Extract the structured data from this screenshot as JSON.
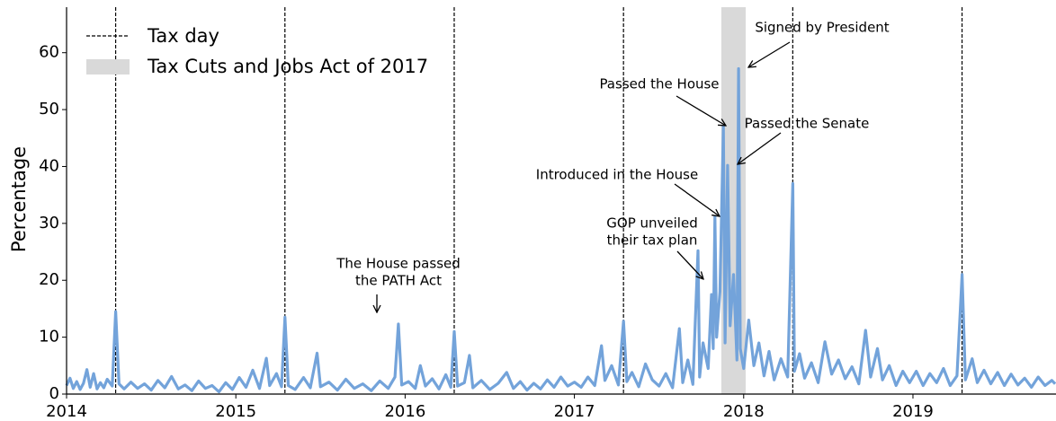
{
  "chart_data": {
    "type": "line",
    "y_label": "Percentage",
    "xlim": [
      2014,
      2019.845
    ],
    "xticks": [
      2014,
      2015,
      2016,
      2017,
      2018,
      2019
    ],
    "ylim": [
      0,
      68
    ],
    "yticks": [
      0,
      10,
      20,
      30,
      40,
      50,
      60
    ],
    "tax_day_label": "Tax day",
    "tax_days": [
      2014.29,
      2015.29,
      2016.29,
      2017.29,
      2018.29,
      2019.29
    ],
    "span_label": "Tax Cuts and Jobs Act of 2017",
    "span": [
      2017.868,
      2018.012
    ],
    "span_color": "#d9d9d9",
    "annotations": [
      [
        "The House passed",
        "the PATH Act"
      ],
      [
        "GOP unveiled",
        "their tax plan"
      ],
      [
        "Introduced in the House"
      ],
      [
        "Passed the House"
      ],
      [
        "Passed the Senate"
      ],
      [
        "Signed by President"
      ]
    ],
    "series": [
      {
        "color": "#73a3da",
        "x": [
          2014.0,
          2014.02,
          2014.04,
          2014.06,
          2014.08,
          2014.1,
          2014.12,
          2014.14,
          2014.16,
          2014.18,
          2014.2,
          2014.22,
          2014.24,
          2014.27,
          2014.29,
          2014.31,
          2014.34,
          2014.38,
          2014.42,
          2014.46,
          2014.5,
          2014.54,
          2014.58,
          2014.62,
          2014.66,
          2014.7,
          2014.74,
          2014.78,
          2014.82,
          2014.86,
          2014.9,
          2014.94,
          2014.98,
          2015.02,
          2015.06,
          2015.1,
          2015.14,
          2015.18,
          2015.2,
          2015.24,
          2015.27,
          2015.29,
          2015.31,
          2015.35,
          2015.4,
          2015.44,
          2015.48,
          2015.5,
          2015.55,
          2015.6,
          2015.65,
          2015.7,
          2015.75,
          2015.8,
          2015.85,
          2015.9,
          2015.94,
          2015.96,
          2015.98,
          2016.02,
          2016.06,
          2016.09,
          2016.12,
          2016.16,
          2016.2,
          2016.24,
          2016.27,
          2016.29,
          2016.31,
          2016.35,
          2016.38,
          2016.4,
          2016.45,
          2016.5,
          2016.55,
          2016.6,
          2016.64,
          2016.68,
          2016.72,
          2016.76,
          2016.8,
          2016.84,
          2016.88,
          2016.92,
          2016.96,
          2017.0,
          2017.04,
          2017.08,
          2017.12,
          2017.16,
          2017.18,
          2017.22,
          2017.26,
          2017.29,
          2017.31,
          2017.34,
          2017.38,
          2017.42,
          2017.46,
          2017.5,
          2017.54,
          2017.58,
          2017.62,
          2017.64,
          2017.67,
          2017.7,
          2017.73,
          2017.74,
          2017.76,
          2017.79,
          2017.81,
          2017.82,
          2017.83,
          2017.84,
          2017.86,
          2017.88,
          2017.89,
          2017.905,
          2017.92,
          2017.94,
          2017.96,
          2017.97,
          2017.98,
          2018.0,
          2018.03,
          2018.06,
          2018.09,
          2018.12,
          2018.15,
          2018.18,
          2018.22,
          2018.26,
          2018.29,
          2018.3,
          2018.33,
          2018.36,
          2018.4,
          2018.44,
          2018.48,
          2018.52,
          2018.56,
          2018.6,
          2018.64,
          2018.68,
          2018.72,
          2018.75,
          2018.79,
          2018.82,
          2018.86,
          2018.9,
          2018.94,
          2018.98,
          2019.02,
          2019.06,
          2019.1,
          2019.14,
          2019.18,
          2019.22,
          2019.26,
          2019.29,
          2019.31,
          2019.35,
          2019.38,
          2019.42,
          2019.46,
          2019.5,
          2019.54,
          2019.58,
          2019.62,
          2019.66,
          2019.7,
          2019.74,
          2019.78,
          2019.82,
          2019.84
        ],
        "values": [
          1.5,
          2.8,
          1.0,
          2.2,
          0.8,
          1.9,
          4.3,
          1.2,
          3.6,
          0.9,
          2.0,
          1.1,
          2.6,
          1.4,
          14.5,
          1.8,
          0.9,
          2.1,
          1.0,
          1.8,
          0.7,
          2.4,
          1.1,
          3.1,
          0.9,
          1.6,
          0.6,
          2.3,
          1.0,
          1.5,
          0.4,
          2.0,
          0.8,
          2.9,
          1.2,
          4.2,
          1.0,
          6.3,
          1.5,
          3.6,
          1.3,
          13.5,
          1.5,
          0.8,
          2.9,
          1.1,
          7.2,
          1.3,
          2.1,
          0.7,
          2.6,
          1.0,
          1.8,
          0.6,
          2.3,
          1.0,
          3.0,
          12.3,
          1.6,
          2.2,
          1.0,
          5.0,
          1.4,
          2.7,
          0.9,
          3.4,
          1.2,
          11.0,
          1.4,
          2.0,
          6.8,
          1.1,
          2.4,
          0.8,
          1.9,
          3.8,
          1.0,
          2.2,
          0.7,
          1.9,
          0.9,
          2.5,
          1.2,
          3.0,
          1.4,
          2.1,
          1.2,
          3.0,
          1.5,
          8.5,
          2.4,
          5.0,
          1.6,
          12.8,
          2.2,
          3.8,
          1.3,
          5.3,
          2.5,
          1.4,
          3.6,
          1.1,
          11.5,
          2.0,
          6.0,
          1.7,
          25.2,
          3.0,
          9.0,
          4.5,
          17.5,
          8.0,
          31.2,
          10.0,
          18.0,
          47.0,
          9.0,
          40.2,
          12.0,
          21.0,
          6.0,
          57.2,
          8.0,
          4.5,
          13.0,
          5.0,
          9.0,
          3.2,
          7.5,
          2.5,
          6.2,
          3.0,
          37.0,
          4.0,
          7.1,
          2.8,
          5.5,
          2.0,
          9.2,
          3.5,
          6.0,
          2.7,
          4.8,
          1.8,
          11.2,
          3.0,
          8.0,
          2.5,
          5.0,
          1.5,
          4.0,
          2.0,
          4.0,
          1.5,
          3.6,
          2.0,
          4.5,
          1.5,
          3.2,
          21.0,
          2.5,
          6.2,
          2.0,
          4.2,
          1.8,
          3.8,
          1.5,
          3.5,
          1.6,
          2.8,
          1.2,
          3.0,
          1.5,
          2.4,
          1.8
        ]
      }
    ]
  }
}
